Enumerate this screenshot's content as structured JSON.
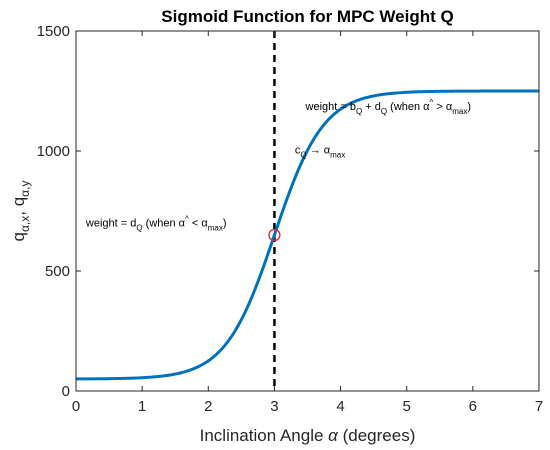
{
  "chart_data": {
    "type": "line",
    "title": "Sigmoid Function for MPC Weight Q",
    "xlabel": {
      "prefix": "Inclination Angle ",
      "symbol": "α",
      "suffix": " (degrees)"
    },
    "ylabel": {
      "base1": "q",
      "sub1": "α,x",
      "sep": ", ",
      "base2": "q",
      "sub2": "α,y"
    },
    "xlim": [
      0,
      7
    ],
    "ylim": [
      0,
      1500
    ],
    "xticks": [
      0,
      1,
      2,
      3,
      4,
      5,
      6,
      7
    ],
    "yticks": [
      0,
      500,
      1000,
      1500
    ],
    "grid": false,
    "series": [
      {
        "color": "#0072BD",
        "function": "sigmoid",
        "params": {
          "b": 1200,
          "d": 50,
          "c": 3,
          "k": 2.7
        },
        "x_range": [
          0,
          7
        ]
      }
    ],
    "vertical_line": {
      "x": 3,
      "style": "dashed",
      "color": "#000000"
    },
    "marker": {
      "x": 3,
      "y": 650,
      "shape": "circle",
      "color": "#D62728"
    },
    "annotations": [
      {
        "anchor": [
          0.15,
          685
        ],
        "parts": [
          {
            "t": "weight = d"
          },
          {
            "t": "Q",
            "sub": true
          },
          {
            "t": " (when α"
          },
          {
            "t": "^",
            "sup": true
          },
          {
            "t": " < α"
          },
          {
            "t": "max",
            "sub": true
          },
          {
            "t": ")"
          }
        ]
      },
      {
        "anchor": [
          3.47,
          1170
        ],
        "parts": [
          {
            "t": "weight = b"
          },
          {
            "t": "Q",
            "sub": true
          },
          {
            "t": " + d"
          },
          {
            "t": "Q",
            "sub": true
          },
          {
            "t": " (when α"
          },
          {
            "t": "^",
            "sup": true
          },
          {
            "t": " > α"
          },
          {
            "t": "max",
            "sub": true
          },
          {
            "t": ")"
          }
        ]
      },
      {
        "anchor": [
          3.31,
          990
        ],
        "parts": [
          {
            "t": "c"
          },
          {
            "t": "Q",
            "sub": true
          },
          {
            "t": " → α"
          },
          {
            "t": "max",
            "sub": true
          }
        ]
      }
    ]
  }
}
